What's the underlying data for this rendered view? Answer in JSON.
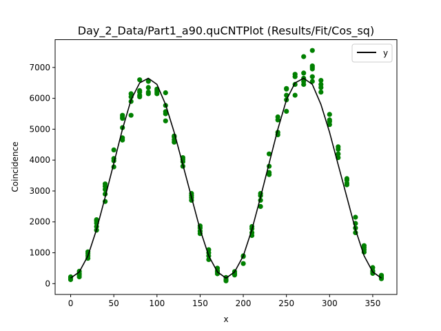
{
  "chart_data": {
    "type": "scatter",
    "title": "Day_2_Data/Part1_a90.quCNTPlot (Results/Fit/Cos_sq)",
    "xlabel": "x",
    "ylabel": "Coincidence",
    "xlim": [
      -18,
      378
    ],
    "ylim": [
      -350,
      7900
    ],
    "xticks": [
      0,
      50,
      100,
      150,
      200,
      250,
      300,
      350
    ],
    "yticks": [
      0,
      1000,
      2000,
      3000,
      4000,
      5000,
      6000,
      7000
    ],
    "legend": {
      "position": "top-right",
      "entries": [
        "y"
      ]
    },
    "colors": {
      "points": "#008000",
      "fit": "#000000"
    },
    "fit_line": {
      "name": "y",
      "x": [
        0,
        10,
        20,
        30,
        40,
        50,
        60,
        70,
        80,
        90,
        100,
        110,
        120,
        130,
        140,
        150,
        160,
        170,
        180,
        190,
        200,
        210,
        220,
        230,
        240,
        250,
        260,
        270,
        280,
        290,
        300,
        310,
        320,
        330,
        340,
        350,
        360
      ],
      "y": [
        180,
        380,
        900,
        1750,
        2800,
        3900,
        5000,
        5950,
        6500,
        6650,
        6450,
        5800,
        4900,
        3850,
        2800,
        1750,
        900,
        380,
        180,
        380,
        900,
        1750,
        2800,
        3900,
        5000,
        5950,
        6500,
        6650,
        6450,
        5800,
        4900,
        3850,
        2800,
        1750,
        900,
        380,
        180
      ]
    },
    "points": {
      "x": [
        0,
        0,
        0,
        10,
        10,
        10,
        10,
        20,
        20,
        20,
        20,
        30,
        30,
        30,
        30,
        30,
        40,
        40,
        40,
        40,
        40,
        50,
        50,
        50,
        50,
        60,
        60,
        60,
        60,
        60,
        60,
        70,
        70,
        70,
        70,
        80,
        80,
        80,
        80,
        80,
        90,
        90,
        90,
        90,
        100,
        100,
        100,
        100,
        110,
        110,
        110,
        110,
        110,
        120,
        120,
        120,
        120,
        130,
        130,
        130,
        130,
        140,
        140,
        140,
        140,
        150,
        150,
        150,
        150,
        160,
        160,
        160,
        160,
        170,
        170,
        170,
        170,
        180,
        180,
        180,
        190,
        190,
        190,
        200,
        200,
        200,
        210,
        210,
        210,
        210,
        220,
        220,
        220,
        220,
        230,
        230,
        230,
        230,
        240,
        240,
        240,
        240,
        250,
        250,
        250,
        250,
        250,
        260,
        260,
        260,
        260,
        270,
        270,
        270,
        270,
        270,
        280,
        280,
        280,
        280,
        280,
        280,
        290,
        290,
        290,
        290,
        300,
        300,
        300,
        300,
        310,
        310,
        310,
        310,
        320,
        320,
        320,
        320,
        330,
        330,
        330,
        330,
        340,
        340,
        340,
        340,
        350,
        350,
        350,
        350,
        360,
        360,
        360,
        360
      ],
      "y": [
        130,
        180,
        220,
        220,
        280,
        330,
        400,
        820,
        900,
        970,
        1030,
        1730,
        1850,
        1960,
        2030,
        2070,
        2660,
        2900,
        3050,
        3150,
        3230,
        3780,
        3980,
        4050,
        4330,
        4650,
        4720,
        5050,
        5350,
        5400,
        5450,
        5450,
        5900,
        6050,
        6150,
        6050,
        6100,
        6200,
        6250,
        6600,
        6150,
        6200,
        6350,
        6550,
        6150,
        6200,
        6250,
        6300,
        5270,
        5500,
        5570,
        5770,
        6180,
        4580,
        4660,
        4750,
        4780,
        3800,
        3950,
        4020,
        4080,
        2700,
        2780,
        2850,
        2920,
        1620,
        1700,
        1800,
        1870,
        780,
        900,
        1000,
        1100,
        320,
        380,
        420,
        500,
        90,
        130,
        200,
        280,
        330,
        390,
        650,
        880,
        900,
        1560,
        1650,
        1780,
        1850,
        2500,
        2700,
        2850,
        2920,
        3530,
        3600,
        3800,
        4200,
        4820,
        4900,
        5300,
        5400,
        5580,
        5950,
        6100,
        6300,
        6320,
        6100,
        6450,
        6700,
        6780,
        6450,
        6550,
        6650,
        6820,
        7350,
        6550,
        6700,
        6950,
        7000,
        7050,
        7550,
        6200,
        6350,
        6450,
        6580,
        5150,
        5250,
        5300,
        5480,
        4080,
        4200,
        4350,
        4430,
        3200,
        3250,
        3350,
        3400,
        1650,
        1800,
        1950,
        2150,
        1020,
        1100,
        1170,
        1230,
        330,
        380,
        420,
        520,
        160,
        200,
        250,
        270
      ]
    }
  }
}
